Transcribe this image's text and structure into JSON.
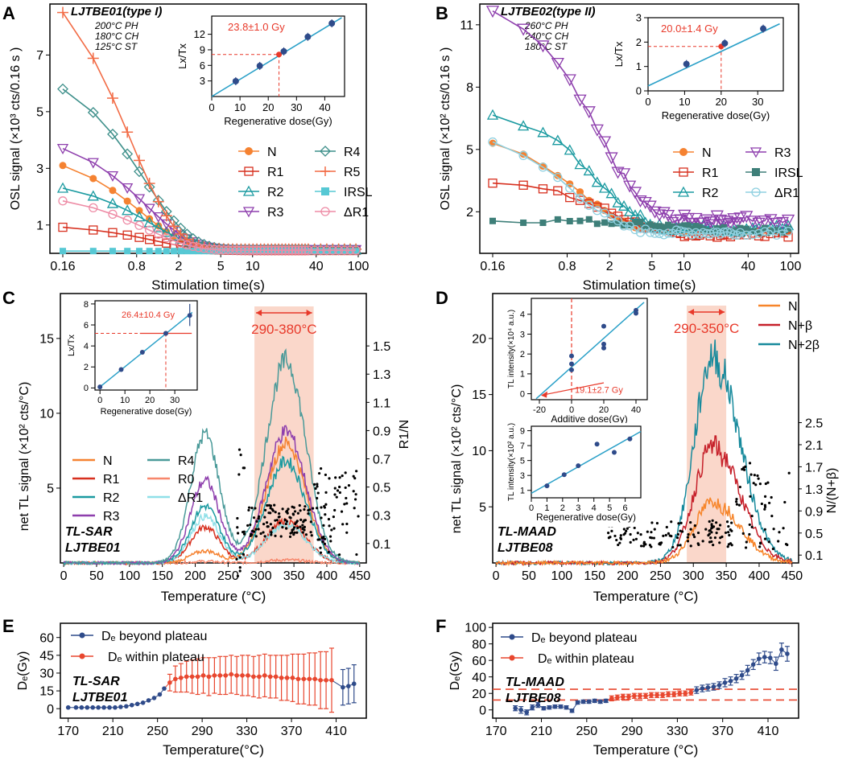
{
  "figure": {
    "panel_letters": [
      "A",
      "B",
      "C",
      "D",
      "E",
      "F"
    ],
    "colors": {
      "N": "#f58231",
      "R1": "#d7301f",
      "R2": "#1a9aa0",
      "R3": "#8e3fad",
      "R4": "#3d8f8a",
      "R5": "#f26b45",
      "IRSL": "#56c8d4",
      "dR1": "#ee8ca6",
      "IRSL_B": "#3e7f79",
      "dR1_B": "#8fd0e0",
      "R0": "#f7876c",
      "R4C": "#4a9a99",
      "dR1C": "#8fe0e8",
      "N_D": "#f7852a",
      "NB_D": "#c6202a",
      "N2B_D": "#178a9c",
      "shade": "#f8c9b8",
      "accent": "#e8392a",
      "fit": "#2aa0c8",
      "point": "#2f4b8a",
      "beyond": "#2f4b8a",
      "within": "#e8472f"
    }
  },
  "chart_data": [
    {
      "id": "A",
      "type": "line",
      "title": "LJTBE01(type I)",
      "protocol": [
        "200°C PH",
        "180°C CH",
        "125°C ST"
      ],
      "xlabel": "Stimulation time(s)",
      "ylabel": "OSL signal (×10³ cts/0.16 s )",
      "xscale": "log",
      "xlim": [
        0.16,
        100
      ],
      "ylim": [
        0,
        8.8
      ],
      "xticks": [
        "0.16",
        "0.8",
        "2",
        "5",
        "10",
        "40",
        "100"
      ],
      "yticks": [
        "1",
        "3",
        "5",
        "7"
      ],
      "legend": [
        "N",
        "R1",
        "R2",
        "R3",
        "R4",
        "R5",
        "IRSL",
        "ΔR1"
      ],
      "series": [
        {
          "name": "N",
          "start": 3.1,
          "end": 0.12
        },
        {
          "name": "R1",
          "start": 0.92,
          "end": 0.1
        },
        {
          "name": "R2",
          "start": 2.3,
          "end": 0.12
        },
        {
          "name": "R3",
          "start": 3.7,
          "end": 0.13
        },
        {
          "name": "R4",
          "start": 5.8,
          "end": 0.14
        },
        {
          "name": "R5",
          "start": 8.5,
          "end": 0.15
        },
        {
          "name": "IRSL",
          "start": 0.08,
          "end": 0.07
        },
        {
          "name": "ΔR1",
          "start": 1.85,
          "end": 0.11
        }
      ],
      "inset": {
        "xlabel": "Regenerative dose(Gy)",
        "ylabel": "Lx/Tx",
        "xlim": [
          0,
          47
        ],
        "ylim": [
          0,
          15.5
        ],
        "xticks": [
          "0",
          "10",
          "20",
          "30",
          "40"
        ],
        "yticks": [
          "3",
          "6",
          "9",
          "12"
        ],
        "points": [
          [
            8.5,
            2.95
          ],
          [
            17,
            5.9
          ],
          [
            25.5,
            8.7
          ],
          [
            34,
            11.5
          ],
          [
            42.5,
            14.1
          ]
        ],
        "fit": [
          [
            0,
            0
          ],
          [
            46,
            15.2
          ]
        ],
        "de_point": [
          23.8,
          8.1
        ],
        "annotation": "23.8±1.0 Gy"
      }
    },
    {
      "id": "B",
      "type": "line",
      "title": "LJTBE02(type II)",
      "protocol": [
        "260°C PH",
        "240°C CH",
        "180°C ST"
      ],
      "xlabel": "Stimulation time(s)",
      "ylabel": "OSL signal (×10² cts/0.16 s )",
      "xscale": "log",
      "xlim": [
        0.16,
        100
      ],
      "ylim": [
        0,
        12
      ],
      "xticks": [
        "0.16",
        "0.8",
        "2",
        "5",
        "10",
        "40",
        "100"
      ],
      "yticks": [
        "2",
        "5",
        "8",
        "11"
      ],
      "legend": [
        "N",
        "R1",
        "R2",
        "R3",
        "IRSL",
        "ΔR1"
      ],
      "series": [
        {
          "name": "N",
          "start": 5.3,
          "end": 1.1
        },
        {
          "name": "R1",
          "start": 3.4,
          "end": 0.9
        },
        {
          "name": "R2",
          "start": 6.8,
          "end": 1.2
        },
        {
          "name": "R3",
          "start": 11.7,
          "end": 1.6
        },
        {
          "name": "IRSL",
          "start": 1.6,
          "end": 1.1
        },
        {
          "name": "ΔR1",
          "start": 5.3,
          "end": 1.0
        }
      ],
      "inset": {
        "xlabel": "Regenerative dose(Gy)",
        "ylabel": "Lx/Tx",
        "xlim": [
          0,
          37
        ],
        "ylim": [
          0,
          3
        ],
        "xticks": [
          "0",
          "10",
          "20",
          "30"
        ],
        "yticks": [
          "0",
          "1",
          "2",
          "3"
        ],
        "points": [
          [
            10.5,
            1.1
          ],
          [
            21,
            1.95
          ],
          [
            31.5,
            2.55
          ]
        ],
        "fit": [
          [
            0,
            0.2
          ],
          [
            36,
            2.75
          ]
        ],
        "de_point": [
          20.0,
          1.82
        ],
        "annotation": "20.0±1.4 Gy"
      }
    },
    {
      "id": "C",
      "type": "line",
      "ylabel": "net TL signal (×10² cts/°C)",
      "y2label": "R1/N",
      "xlabel": "Temperature (°C)",
      "xlim": [
        -5,
        460
      ],
      "ylim": [
        0,
        18
      ],
      "xticks": [
        "0",
        "50",
        "100",
        "150",
        "200",
        "250",
        "300",
        "350",
        "400",
        "450"
      ],
      "yticks": [
        "5",
        "10",
        "15"
      ],
      "y2ticks": [
        "0.1",
        "0.3",
        "0.5",
        "0.7",
        "0.9",
        "1.1",
        "1.3",
        "1.5"
      ],
      "shaded_range": [
        290,
        380
      ],
      "range_label": "290-380°C",
      "legend": [
        "N",
        "R1",
        "R2",
        "R3",
        "R4",
        "R0",
        "ΔR1"
      ],
      "labels": [
        "TL-SAR",
        "LJTBE01"
      ],
      "series": [
        {
          "name": "N",
          "peak1": 0.8,
          "peak2": 8.0
        },
        {
          "name": "R1",
          "peak1": 2.4,
          "peak2": 2.8
        },
        {
          "name": "R2",
          "peak1": 3.8,
          "peak2": 6.8
        },
        {
          "name": "R3",
          "peak1": 5.5,
          "peak2": 8.8
        },
        {
          "name": "R4",
          "peak1": 8.6,
          "peak2": 13.5
        },
        {
          "name": "R0",
          "peak1": 0.1,
          "peak2": 0.2
        },
        {
          "name": "ΔR1",
          "peak1": 3.1,
          "peak2": 2.6
        }
      ],
      "inset": {
        "xlabel": "Regenerative dose(Gy)",
        "ylabel": "Lx/Tx",
        "xlim": [
          -2,
          39
        ],
        "ylim": [
          -0.2,
          8.3
        ],
        "xticks": [
          "0",
          "10",
          "20",
          "30"
        ],
        "yticks": [
          "0",
          "2",
          "4",
          "6",
          "8"
        ],
        "points": [
          [
            0,
            0.1
          ],
          [
            8.5,
            1.75
          ],
          [
            17,
            3.4
          ],
          [
            26.4,
            5.2
          ],
          [
            36,
            6.9
          ]
        ],
        "fit": [
          [
            0,
            0.1
          ],
          [
            37,
            7.2
          ]
        ],
        "de_point": [
          26.4,
          5.2
        ],
        "annotation": "26.4±10.4 Gy"
      }
    },
    {
      "id": "D",
      "type": "line",
      "ylabel": "net TL signal (×10² cts/°C)",
      "y2label": "N/(N+β)",
      "xlabel": "Temperature (°C)",
      "xlim": [
        -5,
        460
      ],
      "ylim": [
        0,
        24
      ],
      "xticks": [
        "0",
        "50",
        "100",
        "150",
        "200",
        "250",
        "300",
        "350",
        "400",
        "450"
      ],
      "yticks": [
        "5",
        "10",
        "15",
        "20"
      ],
      "y2ticks": [
        "0.1",
        "0.5",
        "0.9",
        "1.3",
        "1.7",
        "2.1",
        "2.5"
      ],
      "shaded_range": [
        290,
        350
      ],
      "range_label": "290-350°C",
      "legend": [
        "N",
        "N+β",
        "N+2β"
      ],
      "labels": [
        "TL-MAAD",
        "LJTBE08"
      ],
      "series": [
        {
          "name": "N",
          "peak": 5.5
        },
        {
          "name": "N+β",
          "peak": 10.5
        },
        {
          "name": "N+2β",
          "peak": 18.5
        }
      ],
      "inset_top": {
        "xlabel": "Additive dose(Gy)",
        "ylabel": "TL intensity(×10⁴ a.u.)",
        "xlim": [
          -25,
          47
        ],
        "ylim": [
          -0.3,
          4.8
        ],
        "xticks": [
          "-20",
          "0",
          "20",
          "40"
        ],
        "yticks": [
          "0",
          "1",
          "2",
          "3",
          "4"
        ],
        "points": [
          [
            0,
            1.2
          ],
          [
            0,
            1.5
          ],
          [
            0,
            1.9
          ],
          [
            20,
            2.3
          ],
          [
            20,
            2.5
          ],
          [
            20,
            3.4
          ],
          [
            40,
            4.05
          ],
          [
            40,
            4.2
          ]
        ],
        "fit": [
          [
            -22,
            -0.25
          ],
          [
            45,
            4.6
          ]
        ],
        "annotation": "19.1±2.7 Gy"
      },
      "inset_bottom": {
        "xlabel": "Regenerative dose(Gy)",
        "ylabel": "TL intensity(×10² a.u.)",
        "xlim": [
          0,
          7
        ],
        "ylim": [
          0,
          9.6
        ],
        "xticks": [
          "0",
          "1",
          "2",
          "3",
          "4",
          "5",
          "6"
        ],
        "yticks": [
          "1",
          "3",
          "5",
          "7",
          "9"
        ],
        "points": [
          [
            1.0,
            1.6
          ],
          [
            2.1,
            3.1
          ],
          [
            3.0,
            4.3
          ],
          [
            4.2,
            7.2
          ],
          [
            5.3,
            6.1
          ],
          [
            6.3,
            7.9
          ]
        ],
        "fit": [
          [
            0,
            0.6
          ],
          [
            7,
            8.9
          ]
        ]
      }
    },
    {
      "id": "E",
      "type": "scatter",
      "ylabel": "Dₑ(Gy)",
      "xlabel": "Temperature(°C)",
      "xlim": [
        163,
        437
      ],
      "ylim": [
        -8,
        72
      ],
      "xticks": [
        "170",
        "210",
        "250",
        "290",
        "330",
        "370",
        "410"
      ],
      "yticks": [
        "0",
        "15",
        "30",
        "45",
        "60"
      ],
      "legend": [
        "Dₑ beyond plateau",
        "Dₑ within plateau"
      ],
      "labels": [
        "TL-SAR",
        "LJTBE01"
      ],
      "beyond_pre": [
        [
          170,
          1
        ],
        [
          177,
          1
        ],
        [
          182,
          1
        ],
        [
          187,
          1
        ],
        [
          192,
          1
        ],
        [
          197,
          1
        ],
        [
          202,
          1
        ],
        [
          207,
          1
        ],
        [
          212,
          1
        ],
        [
          217,
          1.5
        ],
        [
          222,
          2
        ],
        [
          227,
          3
        ],
        [
          232,
          4
        ],
        [
          237,
          5
        ],
        [
          242,
          7
        ],
        [
          247,
          9
        ],
        [
          252,
          12
        ],
        [
          256,
          17
        ]
      ],
      "within": [
        [
          261,
          22,
          7
        ],
        [
          266,
          25,
          11
        ],
        [
          271,
          26,
          12
        ],
        [
          276,
          27,
          13
        ],
        [
          281,
          27,
          14
        ],
        [
          286,
          27,
          15
        ],
        [
          291,
          28,
          15
        ],
        [
          296,
          27,
          16
        ],
        [
          301,
          28,
          15
        ],
        [
          306,
          28,
          16
        ],
        [
          311,
          28,
          16
        ],
        [
          316,
          29,
          16
        ],
        [
          321,
          28,
          16
        ],
        [
          326,
          28,
          17
        ],
        [
          331,
          28,
          17
        ],
        [
          336,
          27,
          17
        ],
        [
          341,
          27,
          18
        ],
        [
          346,
          28,
          18
        ],
        [
          351,
          27,
          18
        ],
        [
          356,
          27,
          18
        ],
        [
          361,
          26,
          19
        ],
        [
          366,
          26,
          19
        ],
        [
          371,
          26,
          20
        ],
        [
          376,
          25,
          21
        ],
        [
          381,
          25,
          21
        ],
        [
          386,
          25,
          22
        ],
        [
          391,
          25,
          22
        ],
        [
          396,
          24,
          24
        ],
        [
          401,
          24,
          24
        ],
        [
          406,
          24,
          27
        ]
      ],
      "beyond_post": [
        [
          416,
          18,
          15
        ],
        [
          421,
          19,
          15
        ],
        [
          426,
          21,
          16
        ]
      ]
    },
    {
      "id": "F",
      "type": "scatter",
      "ylabel": "Dₑ(Gy)",
      "xlabel": "Temperature (°C)",
      "xlim": [
        167,
        437
      ],
      "ylim": [
        -10,
        105
      ],
      "xticks": [
        "170",
        "210",
        "250",
        "290",
        "330",
        "370",
        "410"
      ],
      "yticks": [
        "0",
        "20",
        "40",
        "60",
        "80",
        "100"
      ],
      "legend": [
        "Dₑ beyond plateau",
        "Dₑ within plateau"
      ],
      "labels": [
        "TL-MAAD",
        "LJTBE08"
      ],
      "plateau_band": [
        12,
        25
      ],
      "beyond_pre": [
        [
          187,
          2,
          3
        ],
        [
          192,
          0,
          4
        ],
        [
          197,
          -3,
          3
        ],
        [
          202,
          3,
          3
        ],
        [
          207,
          6,
          3
        ],
        [
          212,
          2,
          2
        ],
        [
          217,
          3,
          2
        ],
        [
          222,
          4,
          2
        ],
        [
          227,
          4,
          2
        ],
        [
          232,
          3,
          2
        ],
        [
          237,
          -1,
          2
        ],
        [
          242,
          9,
          2
        ],
        [
          247,
          10,
          2
        ],
        [
          252,
          10,
          2
        ],
        [
          257,
          11,
          2
        ],
        [
          262,
          10,
          2
        ],
        [
          267,
          11,
          2
        ]
      ],
      "within": [
        [
          272,
          14,
          3
        ],
        [
          277,
          15,
          3
        ],
        [
          282,
          16,
          3
        ],
        [
          287,
          16,
          3
        ],
        [
          292,
          17,
          3
        ],
        [
          297,
          17,
          3
        ],
        [
          302,
          17,
          3
        ],
        [
          307,
          18,
          3
        ],
        [
          312,
          18,
          3
        ],
        [
          317,
          18,
          3
        ],
        [
          322,
          19,
          3
        ],
        [
          327,
          19,
          3
        ],
        [
          332,
          20,
          3
        ],
        [
          337,
          20,
          3
        ],
        [
          342,
          21,
          3
        ]
      ],
      "beyond_post": [
        [
          347,
          24,
          4
        ],
        [
          352,
          26,
          4
        ],
        [
          357,
          27,
          4
        ],
        [
          362,
          28,
          4
        ],
        [
          367,
          30,
          4
        ],
        [
          372,
          33,
          5
        ],
        [
          377,
          35,
          5
        ],
        [
          382,
          38,
          5
        ],
        [
          387,
          42,
          5
        ],
        [
          392,
          48,
          6
        ],
        [
          397,
          55,
          6
        ],
        [
          402,
          62,
          7
        ],
        [
          407,
          64,
          7
        ],
        [
          412,
          63,
          7
        ],
        [
          417,
          56,
          8
        ],
        [
          422,
          73,
          8
        ],
        [
          427,
          68,
          9
        ]
      ]
    }
  ]
}
